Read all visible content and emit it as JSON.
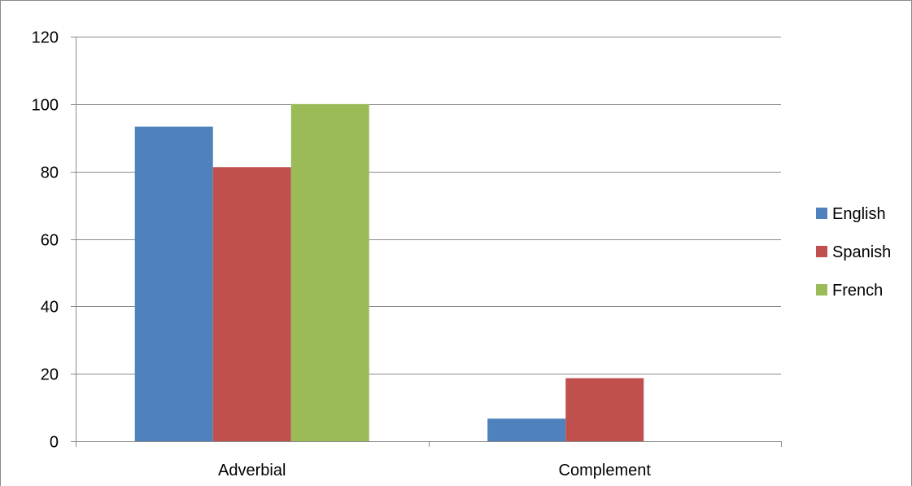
{
  "chart_data": {
    "type": "bar",
    "categories": [
      "Adverbial",
      "Complement"
    ],
    "series": [
      {
        "name": "English",
        "values": [
          93.3,
          6.7
        ],
        "color": "#4f81bd"
      },
      {
        "name": "Spanish",
        "values": [
          81.3,
          18.7
        ],
        "color": "#c0504d"
      },
      {
        "name": "French",
        "values": [
          100,
          0
        ],
        "color": "#9bbb59"
      }
    ],
    "ylim": [
      0,
      120
    ],
    "yticks": [
      0,
      20,
      40,
      60,
      80,
      100,
      120
    ],
    "grid": true,
    "legend": "right",
    "title": "",
    "xlabel": "",
    "ylabel": ""
  }
}
